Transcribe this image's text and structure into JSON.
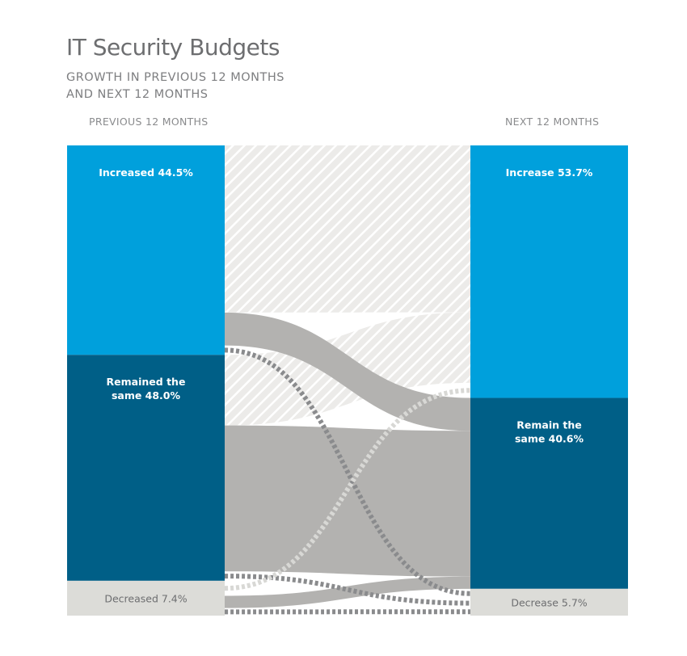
{
  "title": "IT Security Budgets",
  "subtitle": "GROWTH IN PREVIOUS 12 MONTHS\nAND NEXT 12 MONTHS",
  "left_header": "PREVIOUS 12 MONTHS",
  "right_header": "NEXT 12 MONTHS",
  "colors": {
    "increase": "#00a0dc",
    "same": "#005f87",
    "decrease": "#dcdcd8",
    "flow": "#b3b2b0",
    "hatch_line": "#c8c7c5",
    "dash": "#8a8b8d",
    "dash_light": "#d8d8d5"
  },
  "chart_data": {
    "type": "sankey",
    "title": "IT Security Budgets",
    "subtitle": "GROWTH IN PREVIOUS 12 MONTHS AND NEXT 12 MONTHS",
    "left": {
      "header": "PREVIOUS 12 MONTHS",
      "nodes": [
        {
          "key": "increase",
          "label_line1": "Increased 44.5%",
          "label_line2": "",
          "value": 44.5
        },
        {
          "key": "same",
          "label_line1": "Remained the",
          "label_line2": "same 48.0%",
          "value": 48.0
        },
        {
          "key": "decrease",
          "label_line1": "Decreased 7.4%",
          "label_line2": "",
          "value": 7.4
        }
      ]
    },
    "right": {
      "header": "NEXT 12 MONTHS",
      "nodes": [
        {
          "key": "increase",
          "label_line1": "Increase 53.7%",
          "label_line2": "",
          "value": 53.7
        },
        {
          "key": "same",
          "label_line1": "Remain the",
          "label_line2": "same 40.6%",
          "value": 40.6
        },
        {
          "key": "decrease",
          "label_line1": "Decrease 5.7%",
          "label_line2": "",
          "value": 5.7
        }
      ]
    },
    "flows": [
      {
        "from": "increase",
        "to": "increase",
        "value": 35.5,
        "style": "hatch"
      },
      {
        "from": "increase",
        "to": "same",
        "value": 7.0,
        "style": "solid"
      },
      {
        "from": "increase",
        "to": "decrease",
        "value": 2.0,
        "style": "dash"
      },
      {
        "from": "same",
        "to": "increase",
        "value": 15.0,
        "style": "hatch"
      },
      {
        "from": "same",
        "to": "same",
        "value": 31.0,
        "style": "solid"
      },
      {
        "from": "same",
        "to": "decrease",
        "value": 2.0,
        "style": "dash"
      },
      {
        "from": "decrease",
        "to": "increase",
        "value": 3.2,
        "style": "dash_light"
      },
      {
        "from": "decrease",
        "to": "same",
        "value": 2.6,
        "style": "solid"
      },
      {
        "from": "decrease",
        "to": "decrease",
        "value": 1.6,
        "style": "dash"
      }
    ]
  }
}
